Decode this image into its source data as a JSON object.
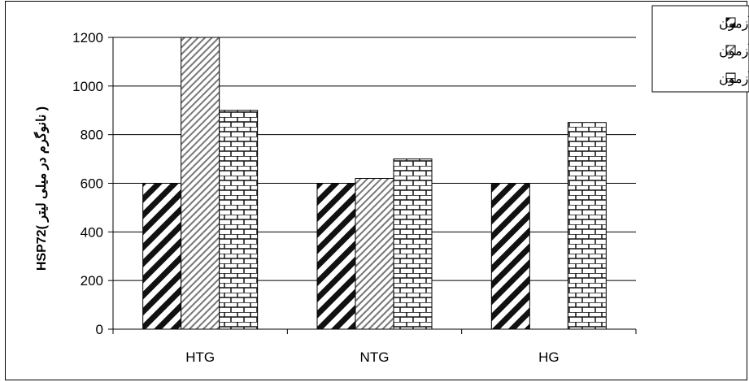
{
  "chart_data": {
    "type": "bar",
    "title": "",
    "xlabel": "",
    "ylabel": "HSP72( نانوگرم در میلی لیتر )",
    "ylim": [
      0,
      1200
    ],
    "yticks": [
      0,
      200,
      400,
      600,
      800,
      1000,
      1200
    ],
    "grid": true,
    "legend_position": "top-right",
    "categories": [
      "HTG",
      "NTG",
      "HG"
    ],
    "series": [
      {
        "name": "پیش آزمون",
        "pattern": "diagonal-stripes",
        "values": [
          600,
          600,
          600
        ]
      },
      {
        "name": "میان آزمون",
        "pattern": "dotted-diagonal",
        "values": [
          1200,
          620,
          null
        ]
      },
      {
        "name": "پس آزمون",
        "pattern": "brick",
        "values": [
          900,
          700,
          850
        ]
      }
    ]
  }
}
